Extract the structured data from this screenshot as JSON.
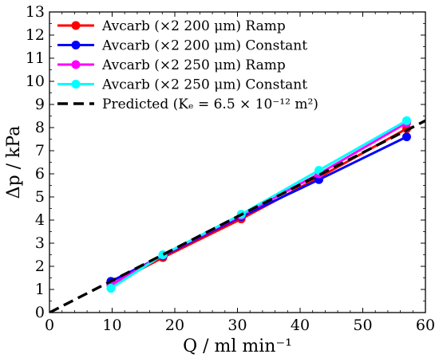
{
  "chart_data": {
    "type": "line",
    "xlabel": "Q / ml min⁻¹",
    "ylabel": "Δp / kPa",
    "xlim": [
      0,
      60
    ],
    "ylim": [
      0,
      13
    ],
    "x_ticks": [
      0,
      10,
      20,
      30,
      40,
      50,
      60
    ],
    "y_ticks": [
      0,
      1,
      2,
      3,
      4,
      5,
      6,
      7,
      8,
      9,
      10,
      11,
      12,
      13
    ],
    "grid": false,
    "legend_position": "top-left",
    "series": [
      {
        "name": "Avcarb (×2 200 μm) Ramp",
        "color": "#ff0000",
        "marker": "circle",
        "line_style": "solid",
        "x": [
          9.8,
          18.1,
          30.6,
          43.0,
          57.0
        ],
        "y": [
          1.2,
          2.38,
          4.05,
          5.85,
          7.95
        ]
      },
      {
        "name": "Avcarb (×2 200 μm) Constant",
        "color": "#0000ff",
        "marker": "circle",
        "line_style": "solid",
        "x": [
          9.8,
          18.1,
          30.6,
          43.0,
          57.0
        ],
        "y": [
          1.35,
          2.45,
          4.15,
          5.75,
          7.6
        ]
      },
      {
        "name": "Avcarb (×2 250 μm) Ramp",
        "color": "#ff00ff",
        "marker": "circle",
        "line_style": "solid",
        "x": [
          9.8,
          18.1,
          30.6,
          43.0,
          57.0
        ],
        "y": [
          1.2,
          2.48,
          4.2,
          6.0,
          8.2
        ]
      },
      {
        "name": "Avcarb (×2 250 μm) Constant",
        "color": "#00ffff",
        "marker": "circle",
        "line_style": "solid",
        "x": [
          9.8,
          18.1,
          30.6,
          43.0,
          57.0
        ],
        "y": [
          1.05,
          2.5,
          4.25,
          6.15,
          8.3
        ]
      },
      {
        "name": "Predicted (Kₑ = 6.5 × 10⁻¹² m²)",
        "color": "#000000",
        "marker": "none",
        "line_style": "dashed",
        "x": [
          0,
          60
        ],
        "y": [
          0,
          8.3
        ]
      }
    ]
  }
}
